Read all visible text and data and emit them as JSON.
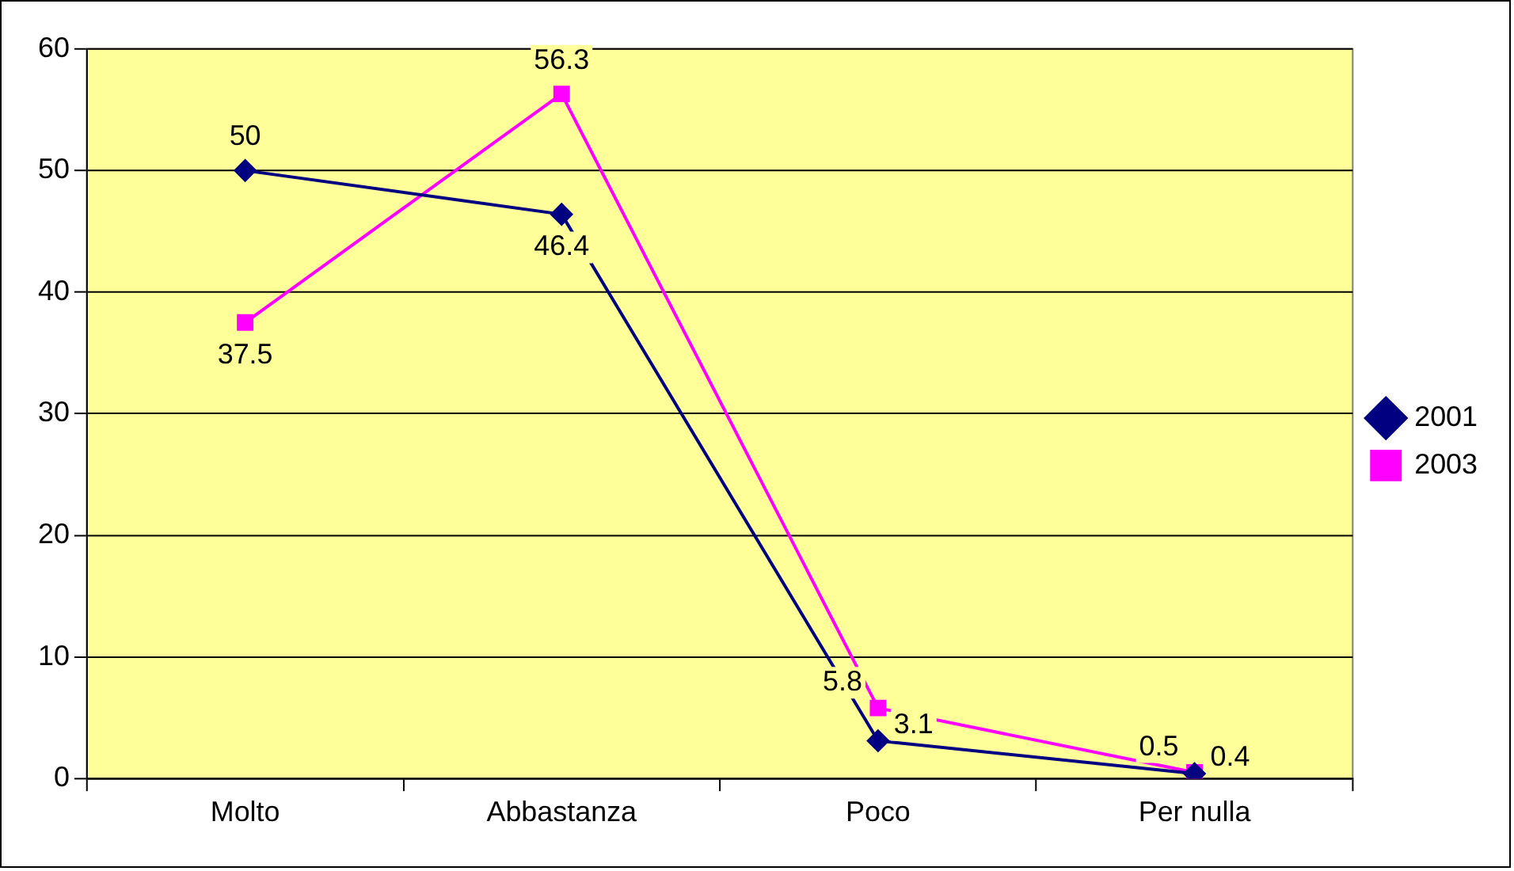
{
  "chart_data": {
    "type": "line",
    "categories": [
      "Molto",
      "Abbastanza",
      "Poco",
      "Per nulla"
    ],
    "series": [
      {
        "name": "2001",
        "color": "#000080",
        "values": [
          50,
          46.4,
          3.1,
          0.4
        ],
        "marker": "diamond"
      },
      {
        "name": "2003",
        "color": "#ff00ff",
        "values": [
          37.5,
          56.3,
          5.8,
          0.5
        ],
        "marker": "square"
      }
    ],
    "ylim": [
      0,
      60
    ],
    "yticks": [
      0,
      10,
      20,
      30,
      40,
      50,
      60
    ],
    "grid": "y",
    "legend": "right",
    "data_labels": true,
    "line_style": "solid"
  }
}
